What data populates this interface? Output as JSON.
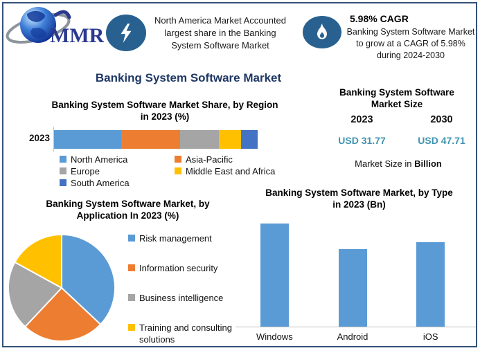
{
  "page": {
    "title": "Banking System Software Market"
  },
  "header": {
    "logo_text": "MMR",
    "left_callout": {
      "icon": "lightning-bolt-icon",
      "text": "North America Market Accounted largest share in the Banking System Software Market"
    },
    "right_callout": {
      "icon": "flame-icon",
      "title": "5.98% CAGR",
      "text": "Banking System Software Market to grow at a CAGR of 5.98% during 2024-2030"
    }
  },
  "market_size_panel": {
    "title": "Banking System Software Market Size",
    "columns": [
      {
        "year": "2023",
        "value": "USD 31.77"
      },
      {
        "year": "2030",
        "value": "USD 47.71"
      }
    ],
    "note_prefix": "Market Size in ",
    "note_bold": "Billion"
  },
  "colors": {
    "accent_navy": "#1F3864",
    "icon_blue": "#28618F",
    "value_teal": "#3E93B0",
    "series_blue": "#5B9BD5",
    "series_orange": "#ED7D31",
    "series_gray": "#A5A5A5",
    "series_yellow": "#FFC000",
    "series_dark_blue": "#4472C4"
  },
  "chart_data": [
    {
      "type": "bar",
      "subtype": "horizontal-stacked",
      "title": "Banking System Software Market Share, by Region in 2023 (%)",
      "categories": [
        "2023"
      ],
      "series": [
        {
          "name": "North America",
          "values": [
            33
          ],
          "color": "#5B9BD5"
        },
        {
          "name": "Asia-Pacific",
          "values": [
            29
          ],
          "color": "#ED7D31"
        },
        {
          "name": "Europe",
          "values": [
            19
          ],
          "color": "#A5A5A5"
        },
        {
          "name": "Middle East and Africa",
          "values": [
            11
          ],
          "color": "#FFC000"
        },
        {
          "name": "South America",
          "values": [
            8
          ],
          "color": "#4472C4"
        }
      ],
      "xlabel": "",
      "ylabel": "",
      "xlim": [
        0,
        100
      ],
      "legend_position": "bottom",
      "values_estimated_from_pixels": true
    },
    {
      "type": "pie",
      "title": "Banking System Software Market, by Application In 2023 (%)",
      "labels": [
        "Risk management",
        "Information security",
        "Business intelligence",
        "Training and consulting solutions"
      ],
      "values": [
        37,
        25,
        21,
        17
      ],
      "colors": [
        "#5B9BD5",
        "#ED7D31",
        "#A5A5A5",
        "#FFC000"
      ],
      "start_angle_deg": 0,
      "direction": "clockwise",
      "legend_position": "right",
      "values_estimated_from_pixels": true
    },
    {
      "type": "bar",
      "title": "Banking System Software Market, by Type in 2023 (Bn)",
      "categories": [
        "Windows",
        "Android",
        "iOS"
      ],
      "values": [
        100,
        75,
        82
      ],
      "units": "relative bar height, % of tallest (no value axis labels shown)",
      "bar_color": "#5B9BD5",
      "ylabel": "",
      "grid": false,
      "values_estimated_from_pixels": true
    }
  ]
}
